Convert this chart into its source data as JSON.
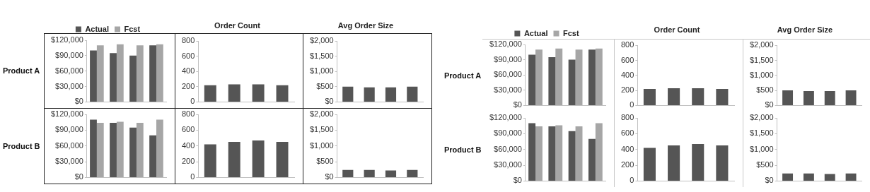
{
  "chart_data": [
    {
      "type": "bar",
      "ylabel": "Product A",
      "legend": "top",
      "tick_labels": "y",
      "categories": [
        null,
        null,
        null,
        null
      ],
      "series": [
        {
          "name": "Actual",
          "color": "#555555",
          "values": [
            100000,
            95000,
            90000,
            110000
          ]
        },
        {
          "name": "Fcst",
          "color": "#a6a6a6",
          "values": [
            110000,
            112000,
            110000,
            112000
          ]
        }
      ],
      "ylim": [
        0,
        120000
      ],
      "yticks": [
        {
          "value": 0,
          "label": "$0"
        },
        {
          "value": 30000,
          "label": "$30,000"
        },
        {
          "value": 60000,
          "label": "$60,000"
        },
        {
          "value": 90000,
          "label": "$90,000"
        },
        {
          "value": 120000,
          "label": "$120,000"
        }
      ]
    },
    {
      "type": "bar",
      "title": "Order Count",
      "tick_labels": "y",
      "categories": [
        null,
        null,
        null,
        null
      ],
      "values": [
        220,
        230,
        230,
        220
      ],
      "color": "#555555",
      "ylim": [
        0,
        800
      ],
      "yticks": [
        0,
        200,
        400,
        600,
        800
      ]
    },
    {
      "type": "bar",
      "title": "Avg Order Size",
      "tick_labels": "y",
      "categories": [
        null,
        null,
        null,
        null
      ],
      "values": [
        500,
        480,
        480,
        500
      ],
      "color": "#555555",
      "ylim": [
        0,
        2000
      ],
      "yticks": [
        {
          "value": 0,
          "label": "$0"
        },
        {
          "value": 500,
          "label": "$500"
        },
        {
          "value": 1000,
          "label": "$1,000"
        },
        {
          "value": 1500,
          "label": "$1,500"
        },
        {
          "value": 2000,
          "label": "$2,000"
        }
      ]
    },
    {
      "type": "bar",
      "ylabel": "Product B",
      "tick_labels": "y",
      "categories": [
        null,
        null,
        null,
        null
      ],
      "series": [
        {
          "color": "#555555",
          "values": [
            110000,
            104000,
            95000,
            80000
          ]
        },
        {
          "color": "#a6a6a6",
          "values": [
            104000,
            106000,
            104000,
            110000
          ]
        }
      ],
      "ylim": [
        0,
        120000
      ],
      "yticks": [
        {
          "value": 0,
          "label": "$0"
        },
        {
          "value": 30000,
          "label": "$30,000"
        },
        {
          "value": 60000,
          "label": "$60,000"
        },
        {
          "value": 90000,
          "label": "$90,000"
        },
        {
          "value": 120000,
          "label": "$120,000"
        }
      ]
    },
    {
      "type": "bar",
      "tick_labels": "y",
      "categories": [
        null,
        null,
        null,
        null
      ],
      "values": [
        420,
        450,
        470,
        450
      ],
      "color": "#555555",
      "ylim": [
        0,
        800
      ],
      "yticks": [
        0,
        200,
        400,
        600,
        800
      ]
    },
    {
      "type": "bar",
      "tick_labels": "y",
      "categories": [
        null,
        null,
        null,
        null
      ],
      "values": [
        240,
        240,
        220,
        240
      ],
      "color": "#555555",
      "ylim": [
        0,
        2000
      ],
      "yticks": [
        {
          "value": 0,
          "label": "$0"
        },
        {
          "value": 500,
          "label": "$500"
        },
        {
          "value": 1000,
          "label": "$1,000"
        },
        {
          "value": 1500,
          "label": "$1,500"
        },
        {
          "value": 2000,
          "label": "$2,000"
        }
      ]
    },
    {
      "type": "bar",
      "ylabel": "Product A",
      "legend": "top",
      "tick_labels": "y",
      "categories": [
        null,
        null,
        null,
        null
      ],
      "series": [
        {
          "name": "Actual",
          "color": "#555555",
          "values": [
            100000,
            95000,
            90000,
            110000
          ]
        },
        {
          "name": "Fcst",
          "color": "#a6a6a6",
          "values": [
            110000,
            112000,
            110000,
            112000
          ]
        }
      ],
      "ylim": [
        0,
        120000
      ],
      "yticks": [
        {
          "value": 0,
          "label": "$0"
        },
        {
          "value": 30000,
          "label": "$30,000"
        },
        {
          "value": 60000,
          "label": "$60,000"
        },
        {
          "value": 90000,
          "label": "$90,000"
        },
        {
          "value": 120000,
          "label": "$120,000"
        }
      ]
    },
    {
      "type": "bar",
      "title": "Order Count",
      "tick_labels": "y",
      "categories": [
        null,
        null,
        null,
        null
      ],
      "values": [
        220,
        230,
        230,
        220
      ],
      "color": "#555555",
      "ylim": [
        0,
        800
      ],
      "yticks": [
        0,
        200,
        400,
        600,
        800
      ]
    },
    {
      "type": "bar",
      "title": "Avg Order Size",
      "tick_labels": "y",
      "categories": [
        null,
        null,
        null,
        null
      ],
      "values": [
        500,
        480,
        480,
        500
      ],
      "color": "#555555",
      "ylim": [
        0,
        2000
      ],
      "yticks": [
        {
          "value": 0,
          "label": "$0"
        },
        {
          "value": 500,
          "label": "$500"
        },
        {
          "value": 1000,
          "label": "$1,000"
        },
        {
          "value": 1500,
          "label": "$1,500"
        },
        {
          "value": 2000,
          "label": "$2,000"
        }
      ]
    },
    {
      "type": "bar",
      "ylabel": "Product B",
      "tick_labels": "y",
      "categories": [
        null,
        null,
        null,
        null
      ],
      "series": [
        {
          "color": "#555555",
          "values": [
            110000,
            104000,
            95000,
            80000
          ]
        },
        {
          "color": "#a6a6a6",
          "values": [
            104000,
            106000,
            104000,
            110000
          ]
        }
      ],
      "ylim": [
        0,
        120000
      ],
      "yticks": [
        {
          "value": 0,
          "label": "$0"
        },
        {
          "value": 30000,
          "label": "$30,000"
        },
        {
          "value": 60000,
          "label": "$60,000"
        },
        {
          "value": 90000,
          "label": "$90,000"
        },
        {
          "value": 120000,
          "label": "$120,000"
        }
      ]
    },
    {
      "type": "bar",
      "tick_labels": "y",
      "categories": [
        null,
        null,
        null,
        null
      ],
      "values": [
        420,
        450,
        470,
        450
      ],
      "color": "#555555",
      "ylim": [
        0,
        800
      ],
      "yticks": [
        0,
        200,
        400,
        600,
        800
      ]
    },
    {
      "type": "bar",
      "tick_labels": "y",
      "categories": [
        null,
        null,
        null,
        null
      ],
      "values": [
        240,
        240,
        220,
        240
      ],
      "color": "#555555",
      "ylim": [
        0,
        2000
      ],
      "yticks": [
        {
          "value": 0,
          "label": "$0"
        },
        {
          "value": 500,
          "label": "$500"
        },
        {
          "value": 1000,
          "label": "$1,000"
        },
        {
          "value": 1500,
          "label": "$1,500"
        },
        {
          "value": 2000,
          "label": "$2,000"
        }
      ]
    }
  ]
}
